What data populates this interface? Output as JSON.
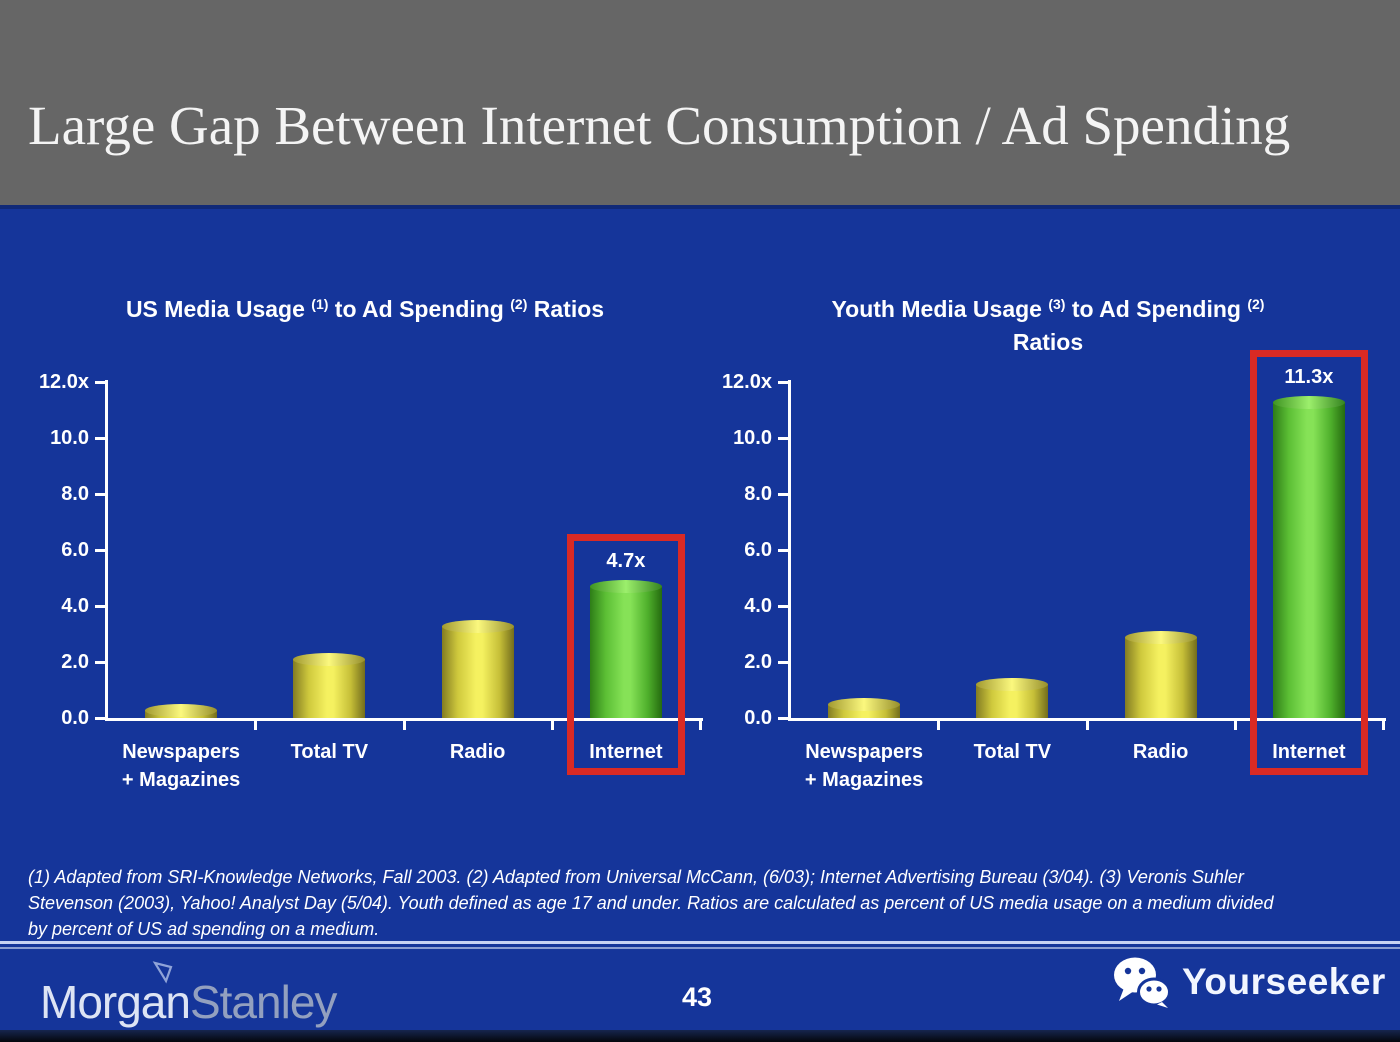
{
  "header": {
    "title": "Large Gap Between Internet Consumption / Ad Spending"
  },
  "chart_data": [
    {
      "type": "bar",
      "title": "US Media Usage (1) to Ad Spending (2) Ratios",
      "title_lines": [
        [
          {
            "t": "US Media Usage "
          },
          {
            "s": "(1)"
          },
          {
            "t": " to Ad Spending "
          },
          {
            "s": "(2)"
          },
          {
            "t": " Ratios"
          }
        ]
      ],
      "categories": [
        "Newspapers\n+ Magazines",
        "Total TV",
        "Radio",
        "Internet"
      ],
      "values": [
        0.3,
        2.1,
        3.3,
        4.7
      ],
      "bar_colors": [
        "yellow",
        "yellow",
        "yellow",
        "green"
      ],
      "highlight": {
        "index": 3,
        "label": "4.7x"
      },
      "yticks": [
        "12.0x",
        "10.0",
        "8.0",
        "6.0",
        "4.0",
        "2.0",
        "0.0"
      ],
      "ylim": [
        0,
        12
      ],
      "xlabel": "",
      "ylabel": "",
      "grid": false,
      "legend": null
    },
    {
      "type": "bar",
      "title": "Youth Media Usage (3) to Ad Spending (2) Ratios",
      "title_lines": [
        [
          {
            "t": "Youth Media Usage "
          },
          {
            "s": "(3)"
          },
          {
            "t": " to Ad Spending "
          },
          {
            "s": "(2)"
          }
        ],
        [
          {
            "t": "Ratios"
          }
        ]
      ],
      "categories": [
        "Newspapers\n+ Magazines",
        "Total TV",
        "Radio",
        "Internet"
      ],
      "values": [
        0.5,
        1.2,
        2.9,
        11.3
      ],
      "bar_colors": [
        "yellow",
        "yellow",
        "yellow",
        "green"
      ],
      "highlight": {
        "index": 3,
        "label": "11.3x"
      },
      "yticks": [
        "12.0x",
        "10.0",
        "8.0",
        "6.0",
        "4.0",
        "2.0",
        "0.0"
      ],
      "ylim": [
        0,
        12
      ],
      "xlabel": "",
      "ylabel": "",
      "grid": false,
      "legend": null
    }
  ],
  "footnote": {
    "lines": [
      "(1) Adapted from SRI-Knowledge Networks, Fall 2003.  (2) Adapted from Universal McCann, (6/03); Internet Advertising Bureau (3/04). (3) Veronis Suhler",
      "Stevenson (2003), Yahoo! Analyst Day (5/04).  Youth defined as age 17 and under.  Ratios are calculated as percent of US media usage on a medium divided",
      "by percent of US ad spending on a medium."
    ]
  },
  "footer": {
    "brand_part1": "Morgan",
    "brand_part2": "Stanley",
    "page_number": "43",
    "partner_brand": "Yourseeker"
  },
  "colors": {
    "background_blue": "#15359a",
    "header_gray": "#666666",
    "bar_yellow": "#f5f160",
    "bar_green": "#86e257",
    "highlight_red": "#d92a24",
    "text_white": "#ffffff"
  }
}
